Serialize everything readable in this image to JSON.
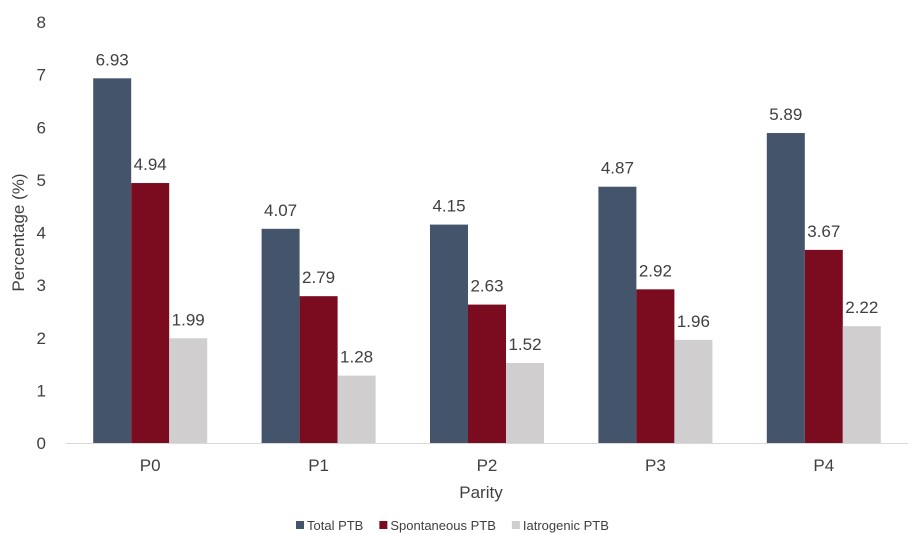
{
  "chart_data": {
    "type": "bar",
    "xlabel": "Parity",
    "ylabel": "Percentage (%)",
    "categories": [
      "P0",
      "P1",
      "P2",
      "P3",
      "P4"
    ],
    "ylim": [
      0,
      8
    ],
    "yticks": [
      0,
      1,
      2,
      3,
      4,
      5,
      6,
      7,
      8
    ],
    "grid": false,
    "legend_position": "bottom",
    "series": [
      {
        "name": "Total PTB",
        "color": "#44546a",
        "values": [
          6.93,
          4.07,
          4.15,
          4.87,
          5.89
        ]
      },
      {
        "name": "Spontaneous PTB",
        "color": "#7b0b1e",
        "values": [
          4.94,
          2.79,
          2.63,
          2.92,
          3.67
        ]
      },
      {
        "name": "Iatrogenic PTB",
        "color": "#d0cece",
        "values": [
          1.99,
          1.28,
          1.52,
          1.96,
          2.22
        ]
      }
    ]
  }
}
